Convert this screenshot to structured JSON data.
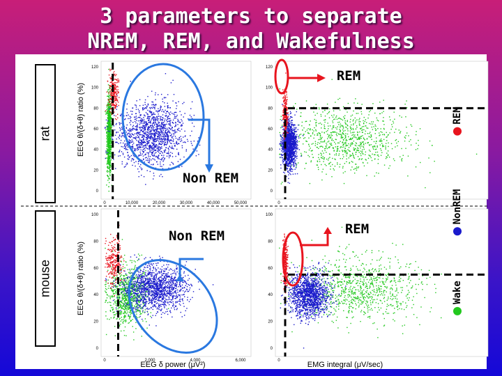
{
  "title": {
    "line1": "3 parameters to separate",
    "line2": "NREM, REM, and Wakefulness"
  },
  "species": {
    "rat": "rat",
    "mouse": "mouse"
  },
  "axis_labels": {
    "y_rat": "EEG θ/(δ+θ) ratio (%)",
    "y_mouse": "EEG θ/(δ+θ) ratio (%)",
    "x_left": "EEG δ power (μV²)",
    "x_right": "EMG integral (μV/sec)"
  },
  "annotations": {
    "rat_nonrem": "Non REM",
    "rat_rem": "REM",
    "mouse_nonrem": "Non REM",
    "mouse_rem": "REM"
  },
  "legend": [
    {
      "label": "REM",
      "color": "#e8141e"
    },
    {
      "label": "NonREM",
      "color": "#1a1acc"
    },
    {
      "label": "Wake",
      "color": "#22c81e"
    }
  ],
  "colors": {
    "rem": "#e8141e",
    "nonrem": "#1a1acc",
    "wake": "#22c81e",
    "circle": "#2a78e0",
    "threshold": "#000000"
  },
  "chart_data": [
    {
      "type": "scatter",
      "panel": "rat-delta",
      "x_ticks": [
        "0",
        "10,000",
        "20,000",
        "30,000",
        "40,000",
        "50,000"
      ],
      "y_ticks": [
        "0",
        "20",
        "40",
        "60",
        "80",
        "100",
        "120"
      ],
      "xlim": [
        0,
        50000
      ],
      "ylim": [
        0,
        120
      ],
      "x_threshold": 3000,
      "y_threshold": null,
      "series": [
        {
          "name": "REM",
          "center": [
            3000,
            95
          ],
          "spread": [
            1500,
            18
          ]
        },
        {
          "name": "NonREM",
          "center": [
            17000,
            55
          ],
          "spread": [
            10000,
            28
          ]
        },
        {
          "name": "Wake",
          "center": [
            1500,
            55
          ],
          "spread": [
            700,
            35
          ]
        }
      ]
    },
    {
      "type": "scatter",
      "panel": "rat-emg",
      "x_ticks": [
        "0",
        "",
        "",
        ""
      ],
      "y_ticks": [
        "0",
        "20",
        "40",
        "60",
        "80",
        "100",
        "120"
      ],
      "ylim": [
        0,
        120
      ],
      "x_threshold": null,
      "y_threshold": 80,
      "series": [
        {
          "name": "REM",
          "center": [
            0.03,
            75
          ],
          "spread": [
            0.01,
            20
          ]
        },
        {
          "name": "NonREM",
          "center": [
            0.05,
            45
          ],
          "spread": [
            0.03,
            20
          ]
        },
        {
          "name": "Wake",
          "center": [
            0.35,
            50
          ],
          "spread": [
            0.25,
            28
          ]
        }
      ]
    },
    {
      "type": "scatter",
      "panel": "mouse-delta",
      "x_ticks": [
        "0",
        "2,000",
        "4,000",
        "6,000"
      ],
      "y_ticks": [
        "0",
        "20",
        "40",
        "60",
        "80",
        "100"
      ],
      "xlim": [
        0,
        6000
      ],
      "ylim": [
        0,
        100
      ],
      "x_threshold": 600,
      "y_threshold": null,
      "series": [
        {
          "name": "REM",
          "center": [
            400,
            65
          ],
          "spread": [
            300,
            15
          ]
        },
        {
          "name": "NonREM",
          "center": [
            2200,
            45
          ],
          "spread": [
            1200,
            15
          ]
        },
        {
          "name": "Wake",
          "center": [
            1000,
            40
          ],
          "spread": [
            700,
            20
          ]
        }
      ]
    },
    {
      "type": "scatter",
      "panel": "mouse-emg",
      "x_ticks": [
        "0",
        "",
        "",
        ""
      ],
      "y_ticks": [
        "0",
        "20",
        "40",
        "60",
        "80",
        "100"
      ],
      "ylim": [
        0,
        100
      ],
      "x_threshold": null,
      "y_threshold": 55,
      "series": [
        {
          "name": "REM",
          "center": [
            0.03,
            65
          ],
          "spread": [
            0.01,
            15
          ]
        },
        {
          "name": "NonREM",
          "center": [
            0.15,
            40
          ],
          "spread": [
            0.08,
            15
          ]
        },
        {
          "name": "Wake",
          "center": [
            0.4,
            45
          ],
          "spread": [
            0.25,
            22
          ]
        }
      ]
    }
  ]
}
